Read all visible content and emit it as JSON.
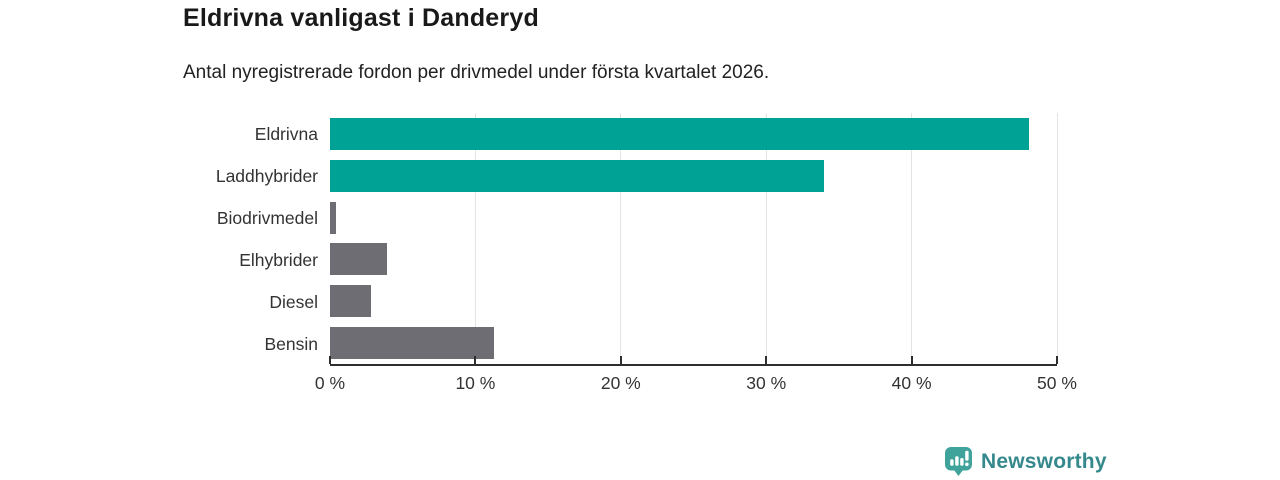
{
  "header": {
    "title": "Eldrivna vanligast i Danderyd",
    "subtitle": "Antal nyregistrerade fordon per drivmedel under första kvartalet 2026."
  },
  "chart_data": {
    "type": "bar",
    "orientation": "horizontal",
    "title": "Eldrivna vanligast i Danderyd",
    "subtitle": "Antal nyregistrerade fordon per drivmedel under första kvartalet 2026.",
    "categories": [
      "Eldrivna",
      "Laddhybrider",
      "Biodrivmedel",
      "Elhybrider",
      "Diesel",
      "Bensin"
    ],
    "values": [
      48.1,
      34.0,
      0.4,
      3.9,
      2.8,
      11.3
    ],
    "unit": "%",
    "xlim": [
      0,
      50
    ],
    "xlabel": "",
    "ylabel": "",
    "grid": "vertical",
    "legend": "none",
    "ticks": [
      {
        "value": 0,
        "label": "0 %"
      },
      {
        "value": 10,
        "label": "10 %"
      },
      {
        "value": 20,
        "label": "20 %"
      },
      {
        "value": 30,
        "label": "30 %"
      },
      {
        "value": 40,
        "label": "40 %"
      },
      {
        "value": 50,
        "label": "50 %"
      }
    ],
    "bar_colors": [
      "#00A296",
      "#00A296",
      "#6E6D73",
      "#6E6D73",
      "#6E6D73",
      "#6E6D73"
    ]
  },
  "colors": {
    "accent_teal": "#00A296",
    "bar_gray": "#6E6D73",
    "axis": "#2e2e2e",
    "gridline": "#e4e4e4",
    "brand_icon": "#3FA39C",
    "brand_text": "#35898c"
  },
  "footer": {
    "brand": "Newsworthy"
  }
}
